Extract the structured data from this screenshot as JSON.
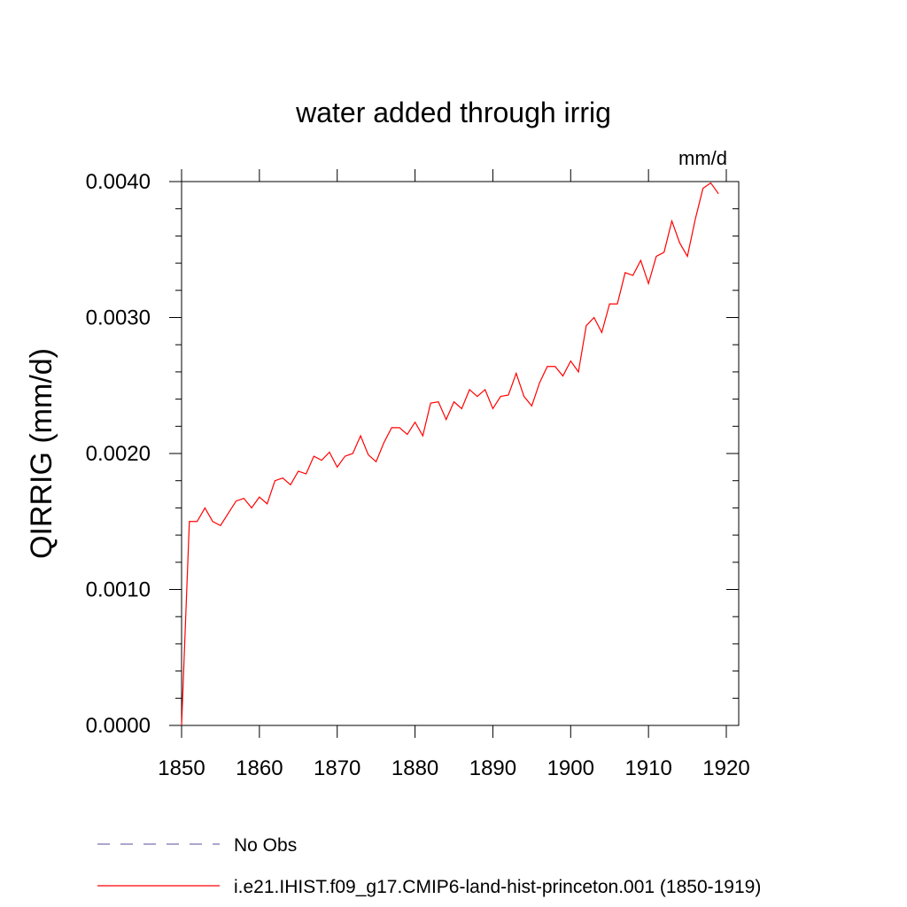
{
  "chart_data": {
    "type": "line",
    "title": "water added through irrig",
    "units": "mm/d",
    "ylabel": "QIRRIG  (mm/d)",
    "xlabel": "",
    "xlim": [
      1850,
      1920
    ],
    "ylim": [
      0,
      0.004
    ],
    "xticks": [
      1850,
      1860,
      1870,
      1880,
      1890,
      1900,
      1910,
      1920
    ],
    "xtick_labels": [
      "1850",
      "1860",
      "1870",
      "1880",
      "1890",
      "1900",
      "1910",
      "1920"
    ],
    "yticks": [
      0,
      0.001,
      0.002,
      0.003,
      0.004
    ],
    "ytick_labels": [
      "0.0000",
      "0.0010",
      "0.0020",
      "0.0030",
      "0.0040"
    ],
    "grid": false,
    "legend_position": "bottom",
    "series": [
      {
        "name": "No Obs",
        "color": "#7b6fb0",
        "dash": "dashed",
        "x": [],
        "y": []
      },
      {
        "name": "i.e21.IHIST.f09_g17.CMIP6-land-hist-princeton.001 (1850-1919)",
        "color": "#ff0000",
        "dash": "solid",
        "x": [
          1850,
          1851,
          1852,
          1853,
          1854,
          1855,
          1856,
          1857,
          1858,
          1859,
          1860,
          1861,
          1862,
          1863,
          1864,
          1865,
          1866,
          1867,
          1868,
          1869,
          1870,
          1871,
          1872,
          1873,
          1874,
          1875,
          1876,
          1877,
          1878,
          1879,
          1880,
          1881,
          1882,
          1883,
          1884,
          1885,
          1886,
          1887,
          1888,
          1889,
          1890,
          1891,
          1892,
          1893,
          1894,
          1895,
          1896,
          1897,
          1898,
          1899,
          1900,
          1901,
          1902,
          1903,
          1904,
          1905,
          1906,
          1907,
          1908,
          1909,
          1910,
          1911,
          1912,
          1913,
          1914,
          1915,
          1916,
          1917,
          1918,
          1919
        ],
        "y": [
          0.0,
          0.0015,
          0.0015,
          0.0016,
          0.0015,
          0.00147,
          0.00156,
          0.00165,
          0.00167,
          0.0016,
          0.00168,
          0.00163,
          0.0018,
          0.00182,
          0.00177,
          0.00187,
          0.00185,
          0.00198,
          0.00195,
          0.00201,
          0.0019,
          0.00198,
          0.002,
          0.00213,
          0.00199,
          0.00194,
          0.00208,
          0.00219,
          0.00219,
          0.00214,
          0.00223,
          0.00213,
          0.00237,
          0.00238,
          0.00225,
          0.00238,
          0.00233,
          0.00247,
          0.00242,
          0.00247,
          0.00233,
          0.00242,
          0.00243,
          0.00259,
          0.00242,
          0.00235,
          0.00252,
          0.00264,
          0.00264,
          0.00257,
          0.00268,
          0.0026,
          0.00294,
          0.003,
          0.00289,
          0.0031,
          0.0031,
          0.00333,
          0.00331,
          0.00342,
          0.00325,
          0.00345,
          0.00348,
          0.00371,
          0.00355,
          0.00345,
          0.00372,
          0.00395,
          0.00399,
          0.00391
        ]
      }
    ]
  }
}
